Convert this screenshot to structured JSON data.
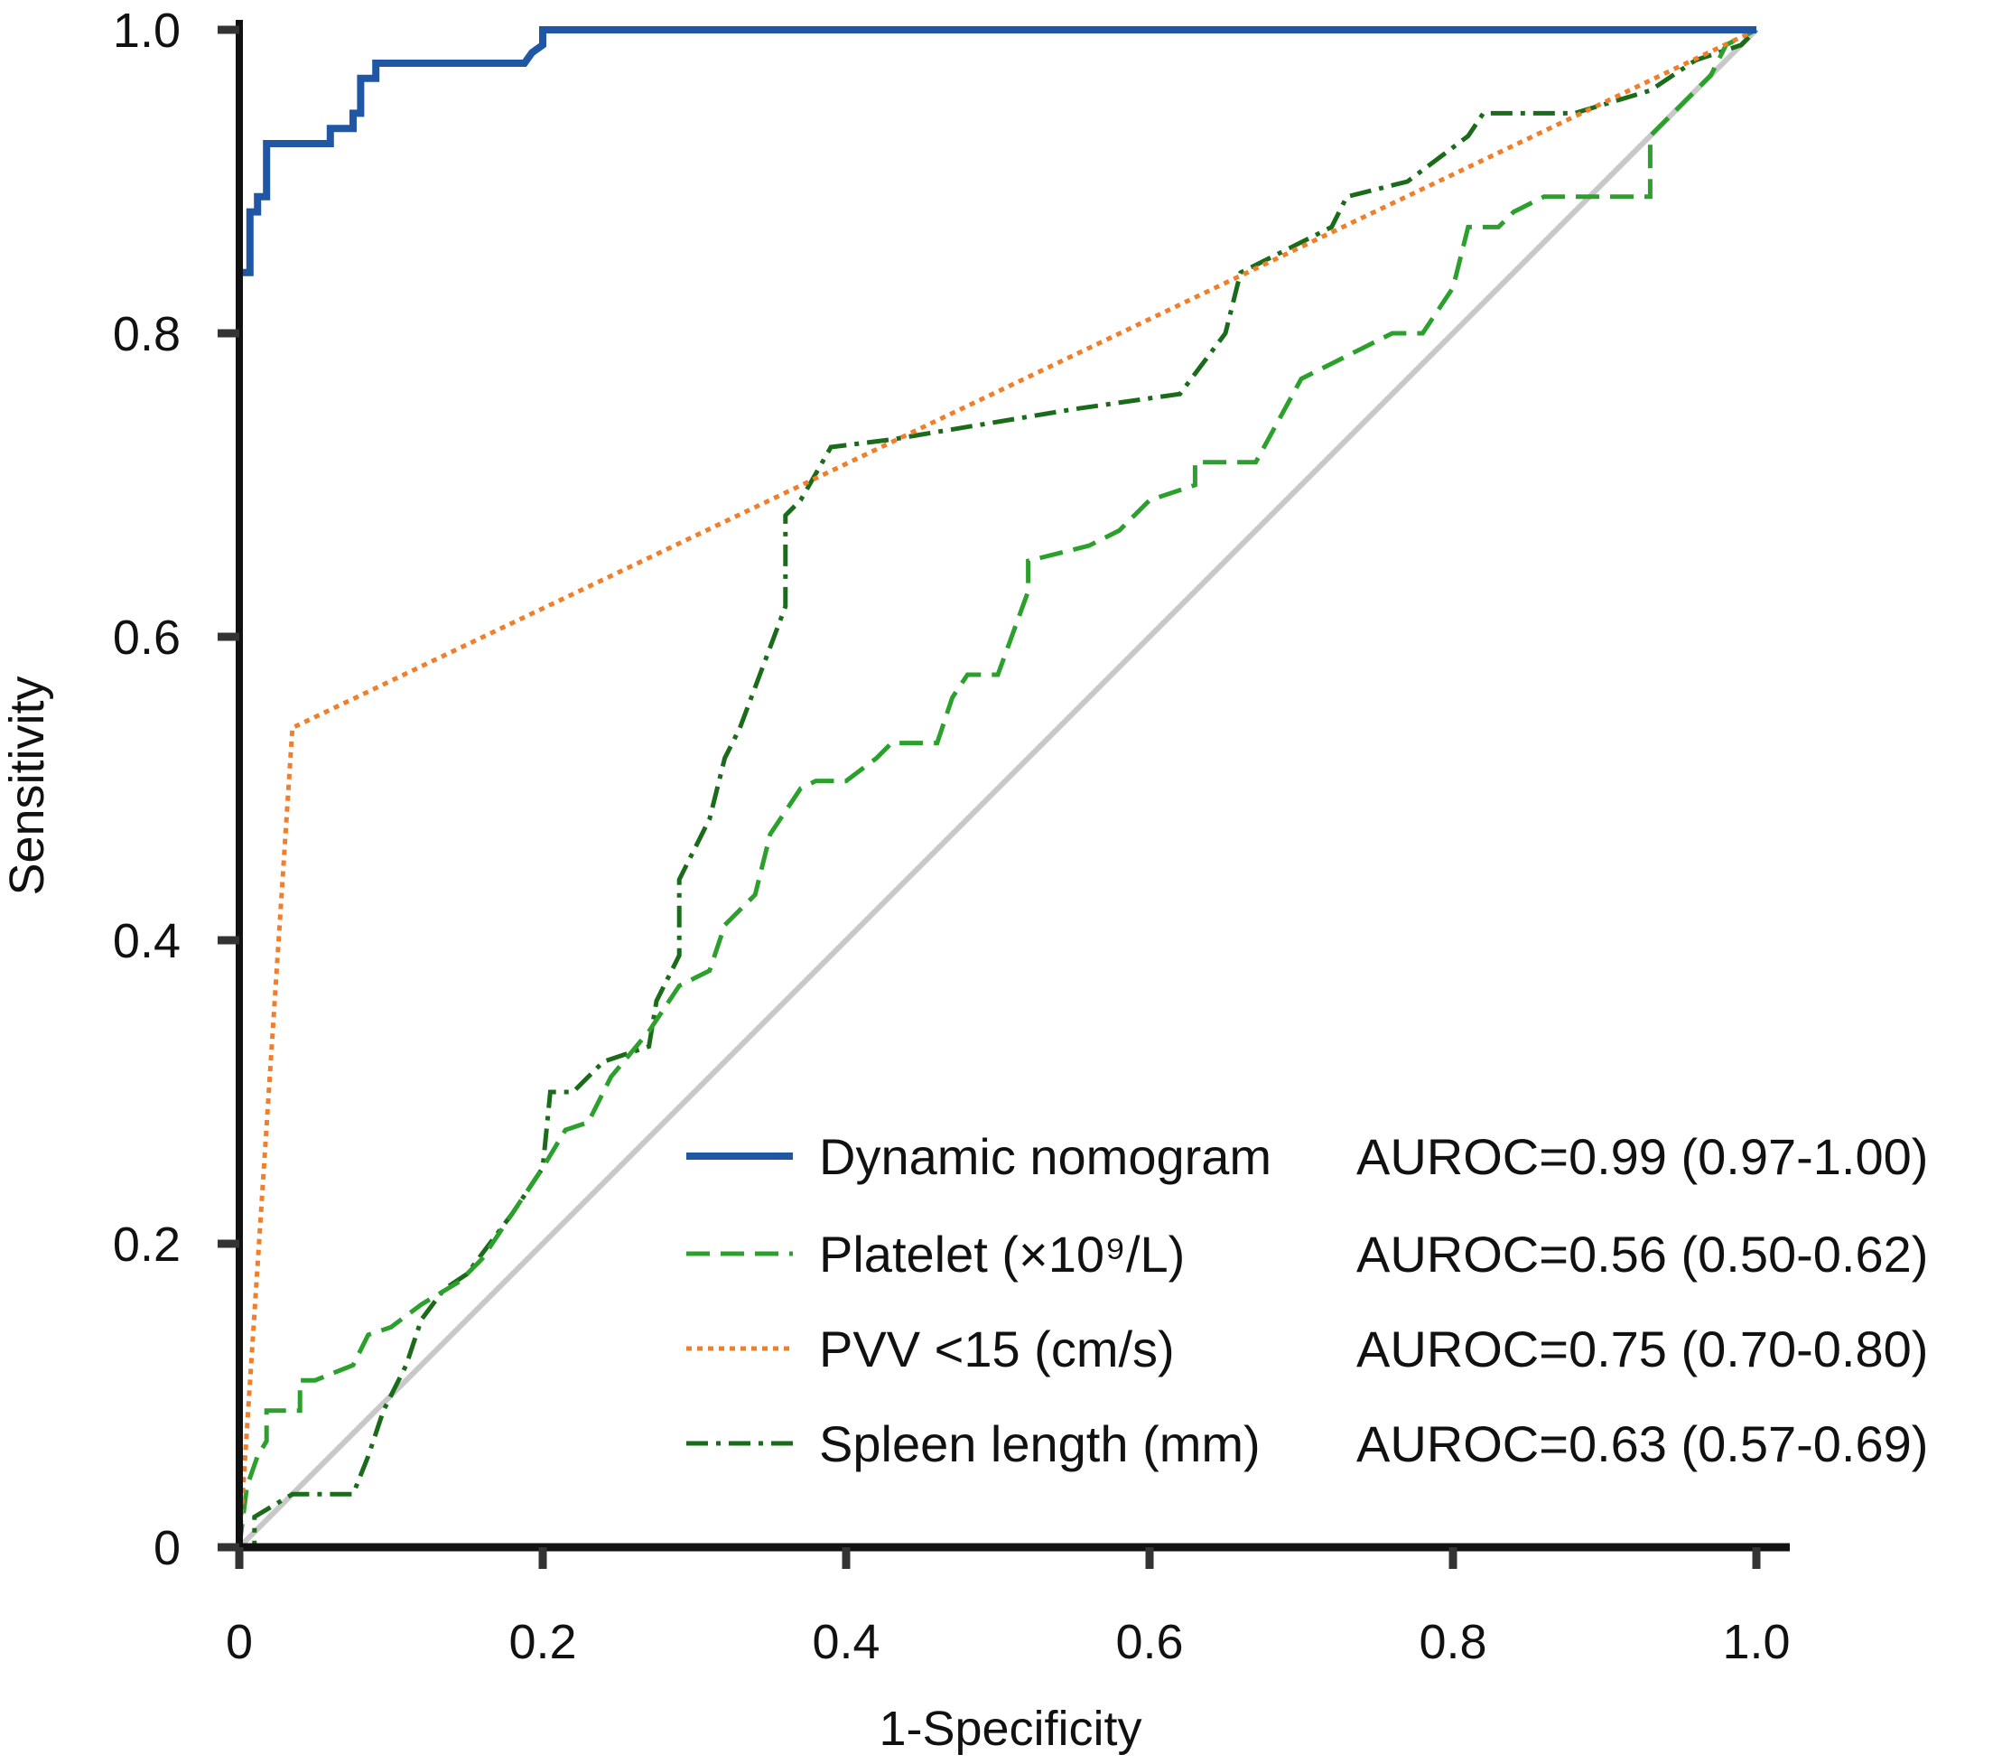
{
  "chart_data": {
    "type": "line",
    "title": "",
    "xlabel": "1-Specificity",
    "ylabel": "Sensitivity",
    "xlim": [
      0,
      1.0
    ],
    "ylim": [
      0,
      1.0
    ],
    "x_ticks": [
      "0",
      "0.2",
      "0.4",
      "0.6",
      "0.8",
      "1.0"
    ],
    "y_ticks": [
      "0",
      "0.2",
      "0.4",
      "0.6",
      "0.8",
      "1.0"
    ],
    "grid": false,
    "legend_position": "bottom-right",
    "reference_line": {
      "name": "chance",
      "color": "#c8c8c8",
      "points": [
        [
          0,
          0
        ],
        [
          1,
          1
        ]
      ]
    },
    "series": [
      {
        "name": "Dynamic nomogram",
        "auroc_text": "AUROC=0.99 (0.97-1.00)",
        "color": "#1f57a4",
        "style": "solid",
        "points": [
          [
            0,
            0
          ],
          [
            0,
            0.84
          ],
          [
            0.007,
            0.84
          ],
          [
            0.007,
            0.88
          ],
          [
            0.012,
            0.88
          ],
          [
            0.012,
            0.89
          ],
          [
            0.018,
            0.89
          ],
          [
            0.018,
            0.925
          ],
          [
            0.06,
            0.925
          ],
          [
            0.06,
            0.935
          ],
          [
            0.075,
            0.935
          ],
          [
            0.075,
            0.945
          ],
          [
            0.08,
            0.945
          ],
          [
            0.08,
            0.968
          ],
          [
            0.09,
            0.968
          ],
          [
            0.09,
            0.978
          ],
          [
            0.188,
            0.978
          ],
          [
            0.193,
            0.985
          ],
          [
            0.2,
            0.99
          ],
          [
            0.2,
            1.0
          ],
          [
            1.0,
            1.0
          ]
        ]
      },
      {
        "name": "Platelet (×10⁹/L)",
        "auroc_text": "AUROC=0.56 (0.50-0.62)",
        "color": "#2ca02c",
        "style": "dashed",
        "points": [
          [
            0,
            0
          ],
          [
            0.005,
            0.04
          ],
          [
            0.012,
            0.06
          ],
          [
            0.018,
            0.07
          ],
          [
            0.018,
            0.09
          ],
          [
            0.04,
            0.09
          ],
          [
            0.04,
            0.11
          ],
          [
            0.05,
            0.11
          ],
          [
            0.075,
            0.12
          ],
          [
            0.085,
            0.14
          ],
          [
            0.1,
            0.145
          ],
          [
            0.12,
            0.16
          ],
          [
            0.145,
            0.175
          ],
          [
            0.16,
            0.19
          ],
          [
            0.18,
            0.22
          ],
          [
            0.2,
            0.25
          ],
          [
            0.215,
            0.275
          ],
          [
            0.23,
            0.28
          ],
          [
            0.245,
            0.31
          ],
          [
            0.27,
            0.34
          ],
          [
            0.29,
            0.37
          ],
          [
            0.31,
            0.38
          ],
          [
            0.32,
            0.41
          ],
          [
            0.34,
            0.43
          ],
          [
            0.35,
            0.47
          ],
          [
            0.37,
            0.5
          ],
          [
            0.38,
            0.505
          ],
          [
            0.4,
            0.505
          ],
          [
            0.42,
            0.52
          ],
          [
            0.43,
            0.53
          ],
          [
            0.46,
            0.53
          ],
          [
            0.47,
            0.56
          ],
          [
            0.48,
            0.575
          ],
          [
            0.5,
            0.575
          ],
          [
            0.52,
            0.63
          ],
          [
            0.52,
            0.65
          ],
          [
            0.56,
            0.66
          ],
          [
            0.58,
            0.67
          ],
          [
            0.6,
            0.69
          ],
          [
            0.63,
            0.7
          ],
          [
            0.63,
            0.715
          ],
          [
            0.67,
            0.715
          ],
          [
            0.7,
            0.77
          ],
          [
            0.72,
            0.78
          ],
          [
            0.74,
            0.79
          ],
          [
            0.76,
            0.8
          ],
          [
            0.78,
            0.8
          ],
          [
            0.8,
            0.83
          ],
          [
            0.81,
            0.87
          ],
          [
            0.83,
            0.87
          ],
          [
            0.84,
            0.88
          ],
          [
            0.86,
            0.89
          ],
          [
            0.93,
            0.89
          ],
          [
            0.93,
            0.93
          ],
          [
            0.95,
            0.95
          ],
          [
            0.97,
            0.97
          ],
          [
            0.98,
            0.99
          ],
          [
            1.0,
            1.0
          ]
        ]
      },
      {
        "name": "PVV <15 (cm/s)",
        "auroc_text": "AUROC=0.75 (0.70-0.80)",
        "color": "#f07f2c",
        "style": "dotted",
        "points": [
          [
            0,
            0
          ],
          [
            0.035,
            0.54
          ],
          [
            1.0,
            1.0
          ]
        ]
      },
      {
        "name": "Spleen length (mm)",
        "auroc_text": "AUROC=0.63 (0.57-0.69)",
        "color": "#1a6b1a",
        "style": "dashdot",
        "points": [
          [
            0,
            0
          ],
          [
            0.01,
            0
          ],
          [
            0.01,
            0.02
          ],
          [
            0.035,
            0.035
          ],
          [
            0.075,
            0.035
          ],
          [
            0.085,
            0.06
          ],
          [
            0.095,
            0.09
          ],
          [
            0.11,
            0.12
          ],
          [
            0.12,
            0.15
          ],
          [
            0.135,
            0.17
          ],
          [
            0.15,
            0.18
          ],
          [
            0.165,
            0.2
          ],
          [
            0.18,
            0.22
          ],
          [
            0.2,
            0.25
          ],
          [
            0.205,
            0.3
          ],
          [
            0.22,
            0.3
          ],
          [
            0.24,
            0.32
          ],
          [
            0.27,
            0.33
          ],
          [
            0.275,
            0.36
          ],
          [
            0.29,
            0.39
          ],
          [
            0.29,
            0.44
          ],
          [
            0.31,
            0.48
          ],
          [
            0.32,
            0.52
          ],
          [
            0.33,
            0.54
          ],
          [
            0.345,
            0.58
          ],
          [
            0.36,
            0.62
          ],
          [
            0.36,
            0.68
          ],
          [
            0.37,
            0.69
          ],
          [
            0.39,
            0.725
          ],
          [
            0.43,
            0.73
          ],
          [
            0.55,
            0.75
          ],
          [
            0.62,
            0.76
          ],
          [
            0.65,
            0.8
          ],
          [
            0.66,
            0.84
          ],
          [
            0.68,
            0.85
          ],
          [
            0.7,
            0.86
          ],
          [
            0.72,
            0.87
          ],
          [
            0.73,
            0.89
          ],
          [
            0.77,
            0.9
          ],
          [
            0.81,
            0.93
          ],
          [
            0.82,
            0.945
          ],
          [
            0.88,
            0.945
          ],
          [
            0.93,
            0.96
          ],
          [
            0.96,
            0.98
          ],
          [
            0.99,
            0.99
          ],
          [
            1.0,
            1.0
          ]
        ]
      }
    ]
  }
}
